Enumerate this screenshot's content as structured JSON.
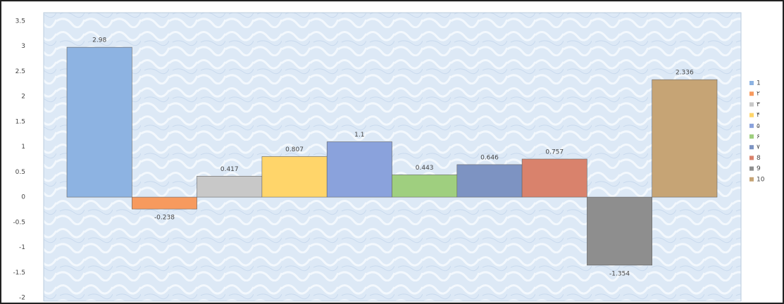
{
  "chart_data": {
    "type": "bar",
    "categories": [
      null
    ],
    "series": [
      {
        "name": "1",
        "color": "#8db3e2",
        "values": [
          2.98
        ]
      },
      {
        "name": "۲",
        "color": "#f79a5e",
        "values": [
          -0.238
        ]
      },
      {
        "name": "۳",
        "color": "#c8c8c8",
        "values": [
          0.417
        ]
      },
      {
        "name": "۴",
        "color": "#ffd56a",
        "values": [
          0.807
        ]
      },
      {
        "name": "۵",
        "color": "#8aa2dc",
        "values": [
          1.1
        ]
      },
      {
        "name": "۶",
        "color": "#9fcf7f",
        "values": [
          0.443
        ]
      },
      {
        "name": "۷",
        "color": "#7d93c2",
        "values": [
          0.646
        ]
      },
      {
        "name": "8",
        "color": "#d9826c",
        "values": [
          0.757
        ]
      },
      {
        "name": "9",
        "color": "#8e8e8e",
        "values": [
          -1.354
        ]
      },
      {
        "name": "10",
        "color": "#c6a475",
        "values": [
          2.336
        ]
      }
    ],
    "ylim": [
      -2,
      3.5
    ],
    "yticks": [
      -2,
      -1.5,
      -1,
      -0.5,
      0,
      0.5,
      1,
      1.5,
      2,
      2.5,
      3,
      3.5
    ],
    "grid": false,
    "legend": "right"
  }
}
